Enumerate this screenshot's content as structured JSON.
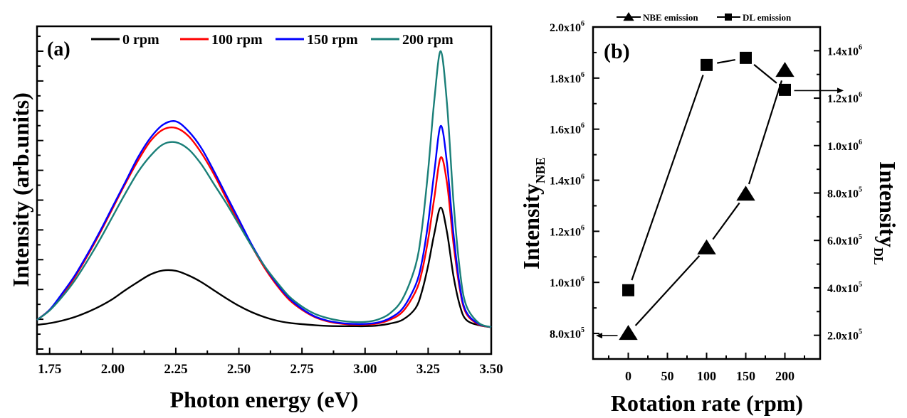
{
  "chart_data": [
    {
      "type": "line",
      "panel_label": "(a)",
      "title": "",
      "xlabel": "Photon energy (eV)",
      "ylabel": "Intensity (arb.units)",
      "xlim": [
        1.7,
        3.5
      ],
      "ylim": [
        0,
        100
      ],
      "xticks": [
        "1.75",
        "2.00",
        "2.25",
        "2.50",
        "2.75",
        "3.00",
        "3.25",
        "3.50"
      ],
      "xtick_values": [
        1.75,
        2.0,
        2.25,
        2.5,
        2.75,
        3.0,
        3.25,
        3.5
      ],
      "y_tick_labels_shown": false,
      "grid": false,
      "legend_position": "top",
      "x": [
        1.7,
        1.75,
        1.8,
        1.85,
        1.9,
        1.95,
        2.0,
        2.05,
        2.1,
        2.15,
        2.2,
        2.25,
        2.3,
        2.35,
        2.4,
        2.45,
        2.5,
        2.55,
        2.6,
        2.65,
        2.7,
        2.75,
        2.8,
        2.85,
        2.9,
        2.95,
        3.0,
        3.05,
        3.1,
        3.15,
        3.2,
        3.225,
        3.25,
        3.275,
        3.3,
        3.325,
        3.35,
        3.375,
        3.4,
        3.45,
        3.5
      ],
      "series": [
        {
          "name": "0 rpm",
          "color": "#000000",
          "values": [
            8.9,
            9.4,
            10.2,
            11.3,
            12.8,
            14.6,
            16.8,
            19.5,
            22,
            24.3,
            25.5,
            25.4,
            24,
            22,
            19.5,
            17,
            14.7,
            12.8,
            11.3,
            10.2,
            9.5,
            9.1,
            8.8,
            8.6,
            8.5,
            8.5,
            8.5,
            8.7,
            9.3,
            10.5,
            14,
            19,
            27,
            37,
            44.7,
            37,
            24,
            15,
            10.5,
            8.8,
            8.2
          ]
        },
        {
          "name": "100 rpm",
          "color": "#ff0000",
          "values": [
            10.4,
            13.5,
            18,
            23.5,
            30,
            37,
            44.5,
            52,
            59,
            65,
            68.5,
            69,
            66.5,
            61.5,
            55,
            47.5,
            40,
            33,
            26.5,
            21,
            16.5,
            13.5,
            11.3,
            10,
            9.3,
            9,
            9,
            9.3,
            10.5,
            13,
            19,
            25,
            35,
            48,
            60,
            52,
            34,
            20,
            12.5,
            9,
            8.2
          ]
        },
        {
          "name": "150 rpm",
          "color": "#0000ff",
          "values": [
            10.4,
            13.5,
            18.5,
            24,
            30.5,
            37.5,
            45,
            52.5,
            60,
            66,
            70,
            71,
            68,
            63,
            56,
            48.5,
            41,
            33.5,
            27,
            21.5,
            17,
            13.8,
            11.5,
            10.2,
            9.5,
            9.2,
            9.2,
            9.6,
            11,
            14,
            21,
            28,
            40,
            56,
            69.6,
            58,
            37,
            21,
            13,
            9.2,
            8.2
          ]
        },
        {
          "name": "200 rpm",
          "color": "#1a7f78",
          "values": [
            10.4,
            13.3,
            17.5,
            22.5,
            28.5,
            35,
            42,
            49,
            55.5,
            60.5,
            64,
            64.6,
            62.5,
            58,
            52,
            46,
            39.5,
            33,
            27,
            22,
            17.5,
            14.5,
            12.3,
            11,
            10.2,
            9.8,
            9.8,
            10.5,
            12.5,
            17,
            27,
            38,
            56,
            78,
            92.4,
            76,
            47,
            26,
            15,
            9.5,
            8.2
          ]
        }
      ]
    },
    {
      "type": "line",
      "panel_label": "(b)",
      "title": "",
      "xlabel": "Rotation rate (rpm)",
      "ylabel_left": "Intensity",
      "ylabel_left_subscript": "NBE",
      "ylabel_right": "Intensity",
      "ylabel_right_subscript": "DL",
      "xlim": [
        -45,
        245
      ],
      "ylim_left": [
        700000,
        2000000
      ],
      "ylim_right": [
        100000,
        1500000
      ],
      "xticks": [
        "0",
        "50",
        "100",
        "150",
        "200"
      ],
      "xtick_values": [
        0,
        50,
        100,
        150,
        200
      ],
      "yticks_left": [
        {
          "value": 800000,
          "mantissa": "8.0x10",
          "exp": "5"
        },
        {
          "value": 1000000,
          "mantissa": "1.0x10",
          "exp": "6"
        },
        {
          "value": 1200000,
          "mantissa": "1.2x10",
          "exp": "6"
        },
        {
          "value": 1400000,
          "mantissa": "1.4x10",
          "exp": "6"
        },
        {
          "value": 1600000,
          "mantissa": "1.6x10",
          "exp": "6"
        },
        {
          "value": 1800000,
          "mantissa": "1.8x10",
          "exp": "6"
        },
        {
          "value": 2000000,
          "mantissa": "2.0x10",
          "exp": "6"
        }
      ],
      "yticks_right": [
        {
          "value": 200000,
          "mantissa": "2.0x10",
          "exp": "5"
        },
        {
          "value": 400000,
          "mantissa": "4.0x10",
          "exp": "5"
        },
        {
          "value": 600000,
          "mantissa": "6.0x10",
          "exp": "5"
        },
        {
          "value": 800000,
          "mantissa": "8.0x10",
          "exp": "5"
        },
        {
          "value": 1000000,
          "mantissa": "1.0x10",
          "exp": "6"
        },
        {
          "value": 1200000,
          "mantissa": "1.2x10",
          "exp": "6"
        },
        {
          "value": 1400000,
          "mantissa": "1.4x10",
          "exp": "6"
        }
      ],
      "grid": false,
      "legend_position": "top",
      "x": [
        0,
        100,
        150,
        200
      ],
      "series": [
        {
          "name": "NBE emission",
          "marker": "triangle",
          "axis": "left",
          "color": "#000000",
          "values": [
            800000,
            1135000,
            1345000,
            1830000
          ]
        },
        {
          "name": "DL emission",
          "marker": "square",
          "axis": "right",
          "color": "#000000",
          "values": [
            390000,
            1340000,
            1370000,
            1235000
          ]
        }
      ],
      "annotations": [
        {
          "type": "arrow",
          "points_to": "left axis",
          "from_series": "NBE emission"
        },
        {
          "type": "arrow",
          "points_to": "right axis",
          "from_series": "DL emission"
        }
      ]
    }
  ]
}
